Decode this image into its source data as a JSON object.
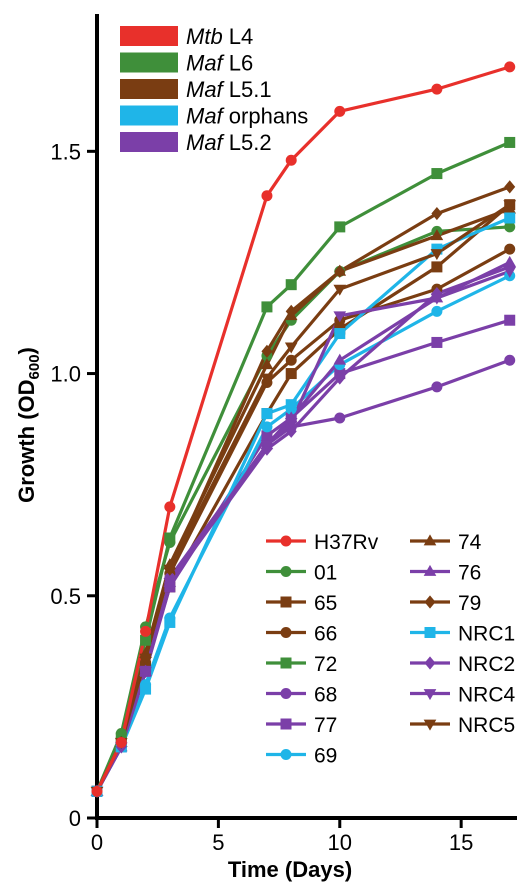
{
  "chart_data": {
    "type": "line",
    "xlabel": "Time (Days)",
    "ylabel_main": "Growth (OD",
    "ylabel_sub": "600",
    "ylabel_close": ")",
    "xlim": [
      0,
      17.3
    ],
    "ylim": [
      0,
      1.8
    ],
    "x_ticks": [
      0,
      5,
      10,
      15
    ],
    "y_ticks": [
      0,
      0.5,
      1.0,
      1.5
    ],
    "y_tick_labels": [
      "0",
      "0.5",
      "1.0",
      "1.5"
    ],
    "x": [
      0,
      1,
      2,
      3,
      7,
      8,
      10,
      14,
      17
    ],
    "group_legend": [
      {
        "italic": "Mtb",
        "rest": " L4",
        "color": "#e8302b"
      },
      {
        "italic": "Maf",
        "rest": " L6",
        "color": "#3f8f3a"
      },
      {
        "italic": "Maf",
        "rest": " L5.1",
        "color": "#7a3d12"
      },
      {
        "italic": "Maf",
        "rest": " orphans",
        "color": "#1fb5e8"
      },
      {
        "italic": "Maf",
        "rest": " L5.2",
        "color": "#7b3fa8"
      }
    ],
    "series": [
      {
        "name": "H37Rv",
        "color": "#e8302b",
        "marker": "circle",
        "values": [
          0.06,
          0.17,
          0.42,
          0.7,
          1.4,
          1.48,
          1.59,
          1.64,
          1.69
        ]
      },
      {
        "name": "01",
        "color": "#3f8f3a",
        "marker": "circle",
        "values": [
          0.06,
          0.19,
          0.43,
          0.62,
          1.04,
          1.12,
          1.23,
          1.32,
          1.33
        ]
      },
      {
        "name": "65",
        "color": "#7a3d12",
        "marker": "square",
        "values": [
          0.06,
          0.17,
          0.34,
          0.52,
          0.91,
          1.0,
          1.1,
          1.24,
          1.38
        ]
      },
      {
        "name": "66",
        "color": "#7a3d12",
        "marker": "circle",
        "values": [
          0.06,
          0.17,
          0.35,
          0.55,
          0.98,
          1.03,
          1.12,
          1.19,
          1.28
        ]
      },
      {
        "name": "72",
        "color": "#3f8f3a",
        "marker": "square",
        "values": [
          0.06,
          0.18,
          0.4,
          0.63,
          1.15,
          1.2,
          1.33,
          1.45,
          1.52
        ]
      },
      {
        "name": "68",
        "color": "#7b3fa8",
        "marker": "circle",
        "values": [
          0.06,
          0.16,
          0.33,
          0.54,
          0.84,
          0.88,
          0.9,
          0.97,
          1.03
        ]
      },
      {
        "name": "77",
        "color": "#7b3fa8",
        "marker": "square",
        "values": [
          0.06,
          0.16,
          0.33,
          0.52,
          0.86,
          0.9,
          1.0,
          1.07,
          1.12
        ]
      },
      {
        "name": "69",
        "color": "#1fb5e8",
        "marker": "circle",
        "values": [
          0.06,
          0.16,
          0.3,
          0.45,
          0.88,
          0.92,
          1.02,
          1.14,
          1.22
        ]
      },
      {
        "name": "74",
        "color": "#7a3d12",
        "marker": "triangle-up",
        "values": [
          0.06,
          0.17,
          0.37,
          0.57,
          1.02,
          1.13,
          1.23,
          1.31,
          1.37
        ]
      },
      {
        "name": "76",
        "color": "#7b3fa8",
        "marker": "triangle-up",
        "values": [
          0.06,
          0.16,
          0.33,
          0.53,
          0.84,
          0.9,
          1.03,
          1.17,
          1.25
        ]
      },
      {
        "name": "79",
        "color": "#7a3d12",
        "marker": "diamond",
        "values": [
          0.06,
          0.17,
          0.36,
          0.56,
          1.05,
          1.14,
          1.23,
          1.36,
          1.42
        ]
      },
      {
        "name": "NRC1",
        "color": "#1fb5e8",
        "marker": "square",
        "values": [
          0.06,
          0.16,
          0.29,
          0.44,
          0.91,
          0.93,
          1.09,
          1.28,
          1.35
        ]
      },
      {
        "name": "NRC2",
        "color": "#7b3fa8",
        "marker": "diamond",
        "values": [
          0.06,
          0.16,
          0.33,
          0.53,
          0.83,
          0.87,
          0.99,
          1.18,
          1.24
        ]
      },
      {
        "name": "NRC4",
        "color": "#7b3fa8",
        "marker": "triangle-down",
        "values": [
          0.06,
          0.16,
          0.33,
          0.53,
          0.84,
          0.89,
          1.13,
          1.17,
          1.23
        ]
      },
      {
        "name": "NRC5",
        "color": "#7a3d12",
        "marker": "triangle-down",
        "values": [
          0.06,
          0.17,
          0.36,
          0.56,
          0.99,
          1.06,
          1.19,
          1.27,
          1.38
        ]
      }
    ],
    "series_legend_left": [
      "H37Rv",
      "01",
      "65",
      "66",
      "72",
      "68",
      "77",
      "69"
    ],
    "series_legend_right": [
      "74",
      "76",
      "79",
      "NRC1",
      "NRC2",
      "NRC4",
      "NRC5"
    ]
  }
}
